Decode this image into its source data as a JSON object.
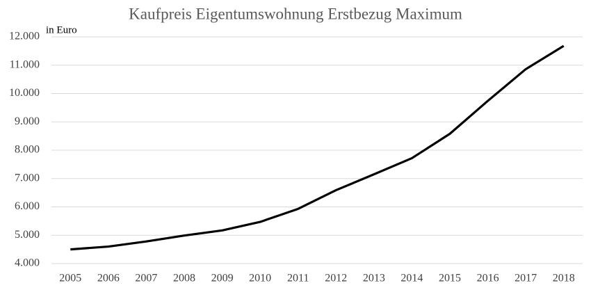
{
  "chart_data": {
    "type": "line",
    "title": "Kaufpreis Eigentumswohnung Erstbezug Maximum",
    "y_axis_label": "in Euro",
    "categories": [
      "2005",
      "2006",
      "2007",
      "2008",
      "2009",
      "2010",
      "2011",
      "2012",
      "2013",
      "2014",
      "2015",
      "2016",
      "2017",
      "2018"
    ],
    "series": [
      {
        "color": "#000000",
        "values": [
          4500,
          4600,
          4780,
          4990,
          5170,
          5470,
          5930,
          6590,
          7150,
          7720,
          8580,
          9740,
          10860,
          11680
        ]
      }
    ],
    "ylim": [
      4000,
      12000
    ],
    "yticks": [
      {
        "value": 4000,
        "label": "4.000"
      },
      {
        "value": 5000,
        "label": "5.000"
      },
      {
        "value": 6000,
        "label": "6.000"
      },
      {
        "value": 7000,
        "label": "7.000"
      },
      {
        "value": 8000,
        "label": "8.000"
      },
      {
        "value": 9000,
        "label": "9.000"
      },
      {
        "value": 10000,
        "label": "10.000"
      },
      {
        "value": 11000,
        "label": "11.000"
      },
      {
        "value": 12000,
        "label": "12.000"
      }
    ],
    "grid": true
  }
}
